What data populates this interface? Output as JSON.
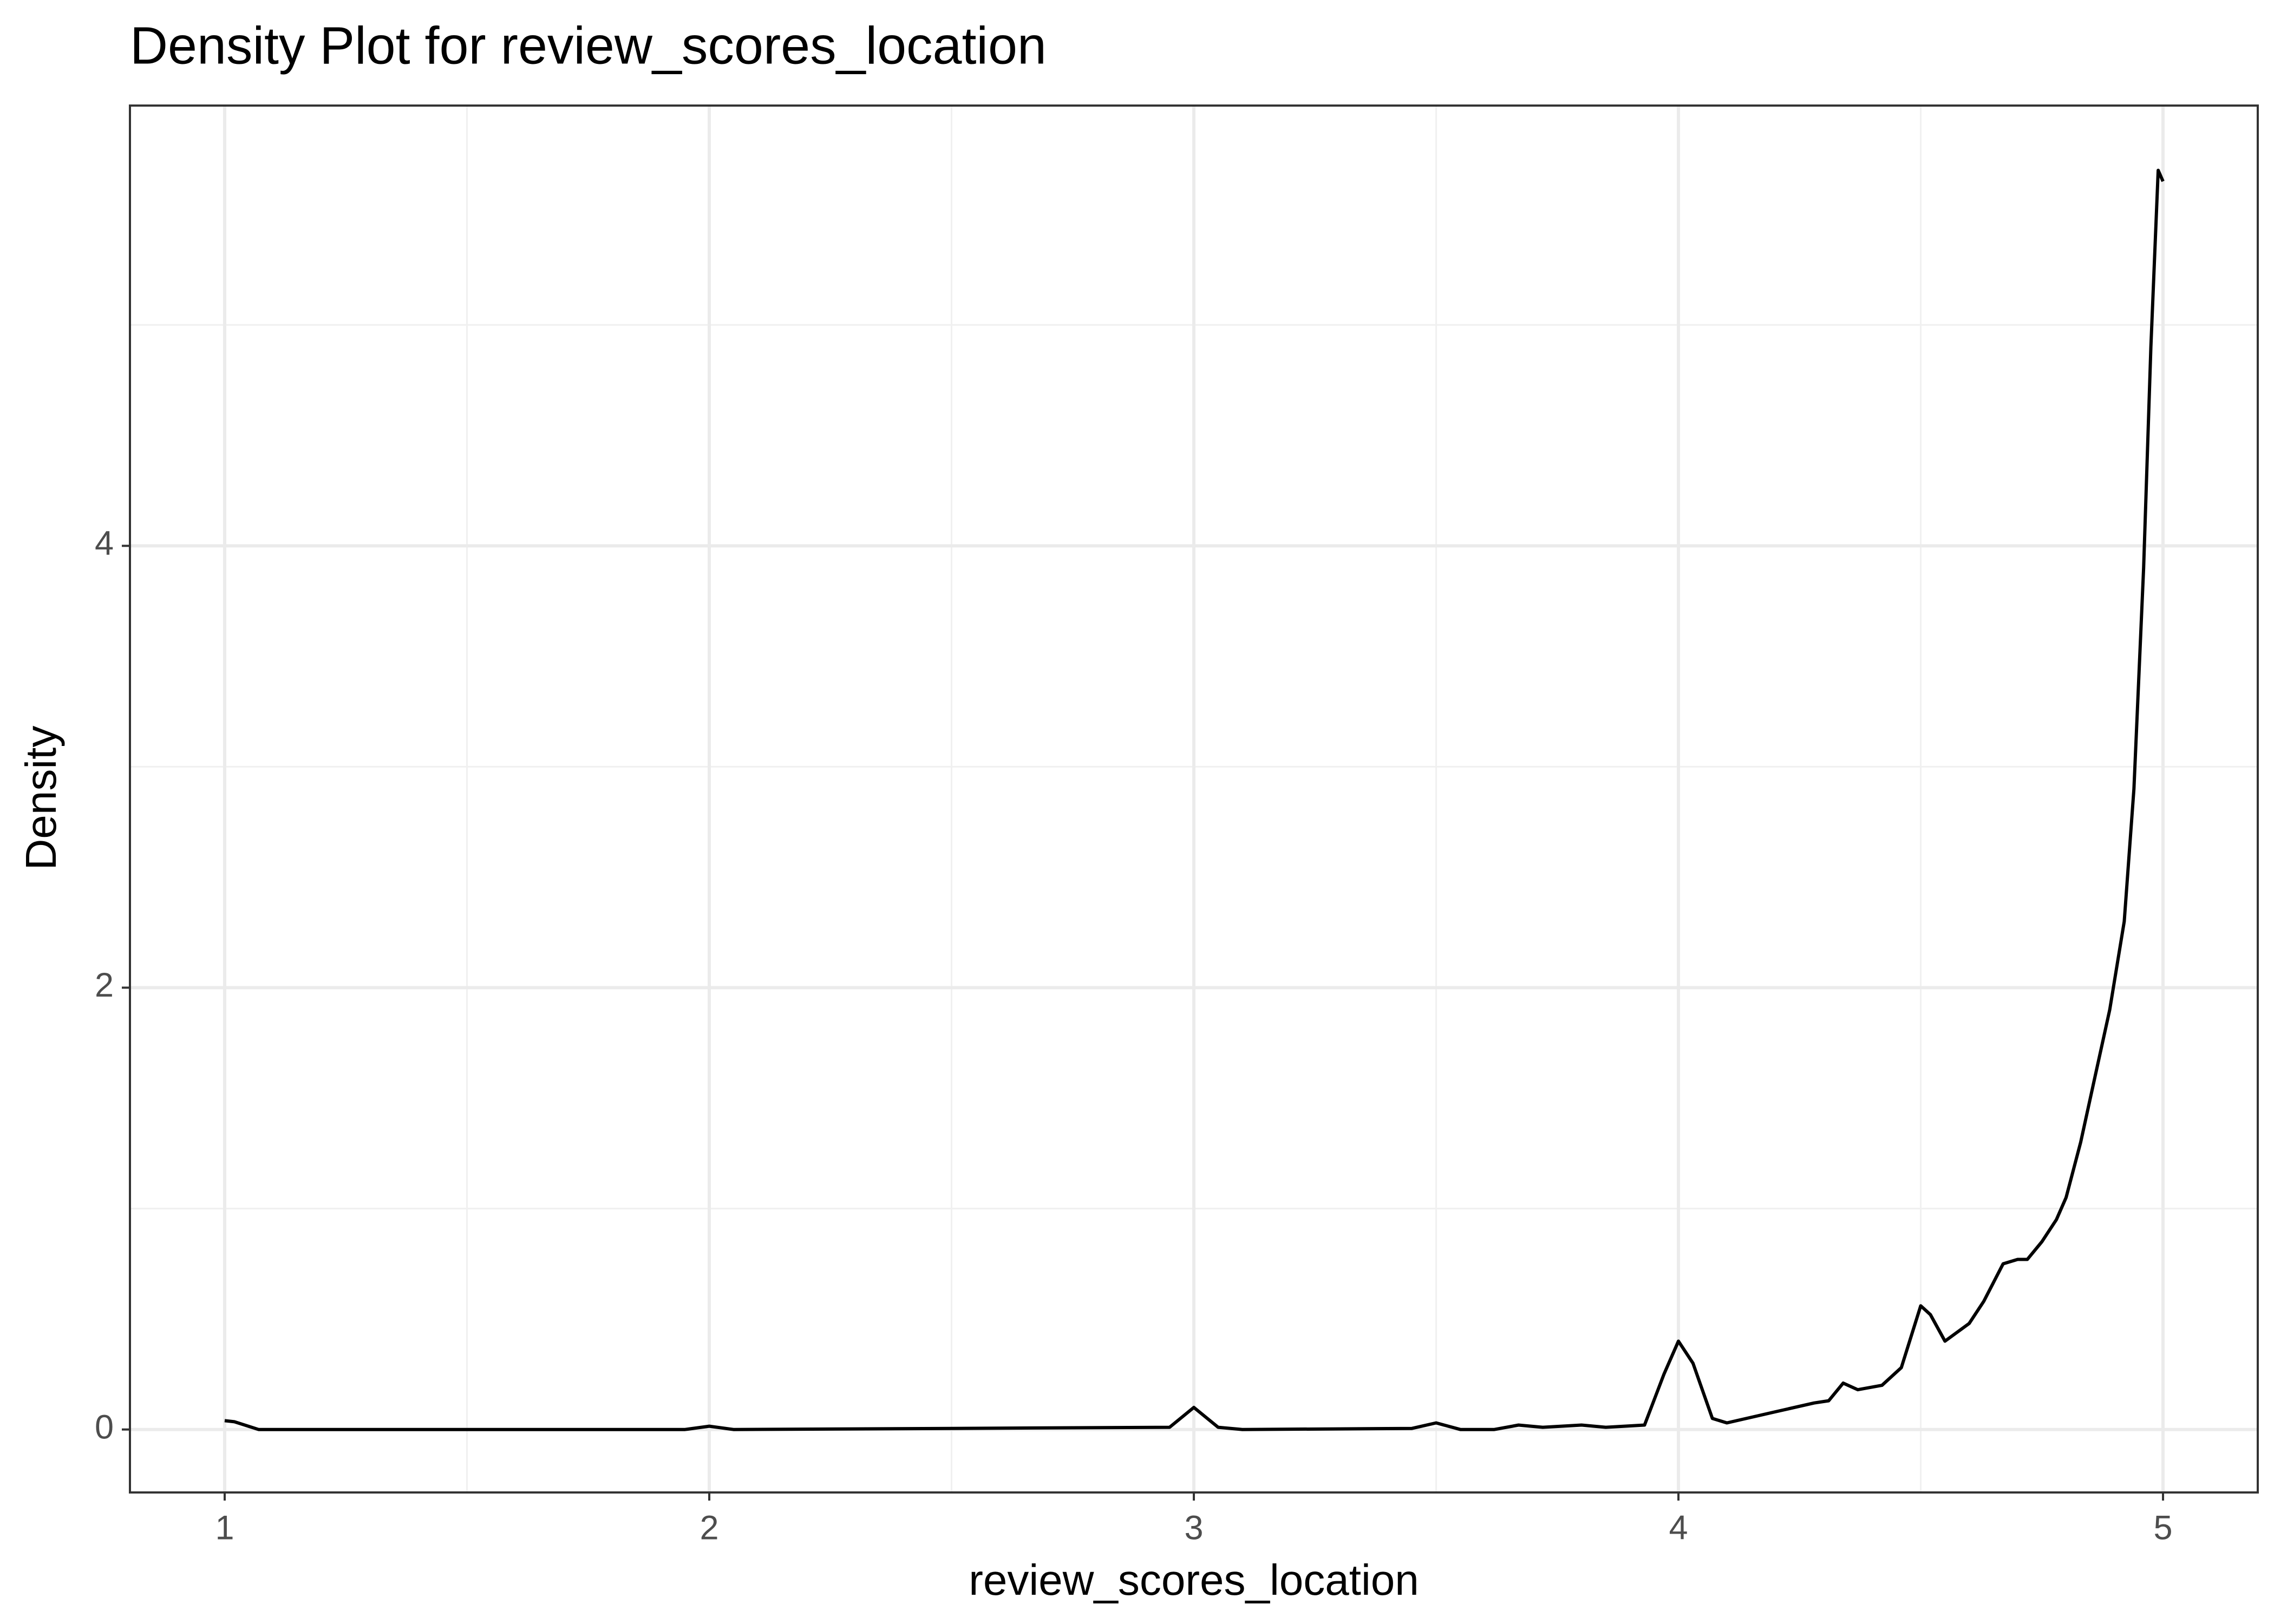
{
  "chart_data": {
    "type": "density",
    "title": "Density Plot for  review_scores_location",
    "xlabel": "review_scores_location",
    "ylabel": "Density",
    "x": [
      1.0,
      1.02,
      1.07,
      1.5,
      1.95,
      2.0,
      2.05,
      2.5,
      2.95,
      3.0,
      3.05,
      3.1,
      3.45,
      3.5,
      3.55,
      3.62,
      3.67,
      3.72,
      3.8,
      3.85,
      3.93,
      3.97,
      4.0,
      4.03,
      4.07,
      4.1,
      4.2,
      4.28,
      4.31,
      4.34,
      4.37,
      4.42,
      4.46,
      4.5,
      4.52,
      4.55,
      4.6,
      4.63,
      4.67,
      4.7,
      4.72,
      4.75,
      4.78,
      4.8,
      4.83,
      4.86,
      4.89,
      4.92,
      4.94,
      4.96,
      4.975,
      4.99,
      5.0
    ],
    "values": [
      0.04,
      0.035,
      0.0,
      0.0,
      0.0,
      0.015,
      0.0,
      0.005,
      0.01,
      0.1,
      0.01,
      0.0,
      0.005,
      0.03,
      0.0,
      0.0,
      0.02,
      0.01,
      0.02,
      0.01,
      0.02,
      0.25,
      0.4,
      0.3,
      0.05,
      0.03,
      0.08,
      0.12,
      0.13,
      0.21,
      0.18,
      0.2,
      0.28,
      0.56,
      0.52,
      0.4,
      0.48,
      0.58,
      0.75,
      0.77,
      0.77,
      0.85,
      0.95,
      1.05,
      1.3,
      1.6,
      1.9,
      2.3,
      2.9,
      3.9,
      4.9,
      5.7,
      5.65
    ],
    "color": "#000000",
    "xlim": [
      0.8045,
      5.1955
    ],
    "ylim": [
      -0.285,
      5.993
    ],
    "xticks": [
      1,
      2,
      3,
      4,
      5
    ],
    "yticks": [
      0,
      2,
      4
    ],
    "xminor": [
      1.5,
      2.5,
      3.5,
      4.5
    ],
    "yminor": [
      1,
      3,
      5
    ],
    "grid": true
  }
}
